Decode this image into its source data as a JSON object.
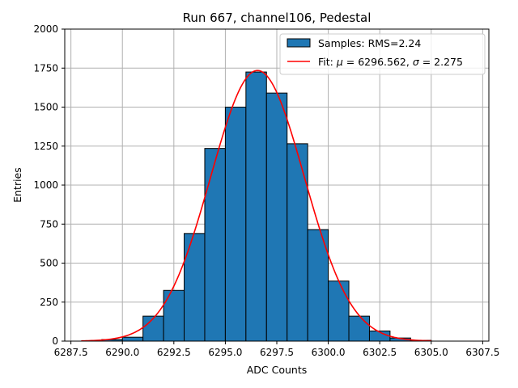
{
  "chart_data": {
    "type": "bar",
    "title": "Run 667, channel106, Pedestal",
    "xlabel": "ADC Counts",
    "ylabel": "Entries",
    "xlim": [
      6287.2,
      6307.8
    ],
    "ylim": [
      0,
      2000
    ],
    "xticks": [
      "6287.5",
      "6290.0",
      "6292.5",
      "6295.0",
      "6297.5",
      "6300.0",
      "6302.5",
      "6305.0",
      "6307.5"
    ],
    "xtick_values": [
      6287.5,
      6290.0,
      6292.5,
      6295.0,
      6297.5,
      6300.0,
      6302.5,
      6305.0,
      6307.5
    ],
    "yticks": [
      "0",
      "250",
      "500",
      "750",
      "1000",
      "1250",
      "1500",
      "1750",
      "2000"
    ],
    "ytick_values": [
      0,
      250,
      500,
      750,
      1000,
      1250,
      1500,
      1750,
      2000
    ],
    "grid": true,
    "legend_position": "top-right",
    "histogram": {
      "name": "Samples: RMS=2.24",
      "color": "#1f77b4",
      "edgecolor": "#000000",
      "bin_edges": [
        6288,
        6289,
        6290,
        6291,
        6292,
        6293,
        6294,
        6295,
        6296,
        6297,
        6298,
        6299,
        6300,
        6301,
        6302,
        6303,
        6304,
        6305
      ],
      "counts": [
        0,
        10,
        25,
        160,
        325,
        690,
        1235,
        1500,
        1725,
        1590,
        1265,
        715,
        385,
        160,
        65,
        20,
        5
      ]
    },
    "fit": {
      "name": "Fit: μ = 6296.562, σ = 2.275",
      "label_prefix": "Fit: ",
      "mu_label": " = 6296.562, ",
      "sigma_label": " = 2.275",
      "mu": 6296.562,
      "sigma": 2.275,
      "amplitude": 1735,
      "x_range": [
        6288,
        6305
      ],
      "color": "#ff0000"
    }
  }
}
